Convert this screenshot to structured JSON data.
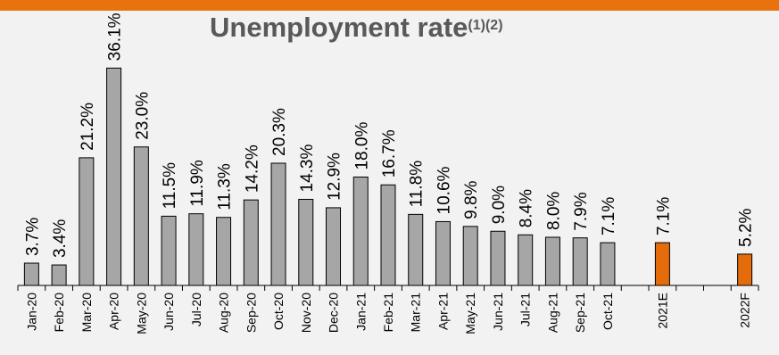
{
  "colors": {
    "accent_stripe": "#e8730c",
    "background": "#f2f2f2",
    "bar_actual": "#a6a6a6",
    "bar_forecast": "#e46c0a",
    "bar_outline": "#000000",
    "title": "#595959"
  },
  "chart_data": {
    "type": "bar",
    "title": "Unemployment rate",
    "title_superscript": "(1)(2)",
    "xlabel": "",
    "ylabel": "",
    "ylim": [
      0,
      40
    ],
    "grid": false,
    "legend": "none",
    "categories": [
      "Jan-20",
      "Feb-20",
      "Mar-20",
      "Apr-20",
      "May-20",
      "Jun-20",
      "Jul-20",
      "Aug-20",
      "Sep-20",
      "Oct-20",
      "Nov-20",
      "Dec-20",
      "Jan-21",
      "Feb-21",
      "Mar-21",
      "Apr-21",
      "May-21",
      "Jun-21",
      "Jul-21",
      "Aug-21",
      "Sep-21",
      "Oct-21",
      "",
      "2021E",
      "",
      "",
      "2022F"
    ],
    "values": [
      3.7,
      3.4,
      21.2,
      36.1,
      23.0,
      11.5,
      11.9,
      11.3,
      14.2,
      20.3,
      14.3,
      12.9,
      18.0,
      16.7,
      11.8,
      10.6,
      9.8,
      9.0,
      8.4,
      8.0,
      7.9,
      7.1,
      null,
      7.1,
      null,
      null,
      5.2
    ],
    "labels": [
      "3.7%",
      "3.4%",
      "21.2%",
      "36.1%",
      "23.0%",
      "11.5%",
      "11.9%",
      "11.3%",
      "14.2%",
      "20.3%",
      "14.3%",
      "12.9%",
      "18.0%",
      "16.7%",
      "11.8%",
      "10.6%",
      "9.8%",
      "9.0%",
      "8.4%",
      "8.0%",
      "7.9%",
      "7.1%",
      "",
      "7.1%",
      "",
      "",
      "5.2%"
    ],
    "kind": [
      "actual",
      "actual",
      "actual",
      "actual",
      "actual",
      "actual",
      "actual",
      "actual",
      "actual",
      "actual",
      "actual",
      "actual",
      "actual",
      "actual",
      "actual",
      "actual",
      "actual",
      "actual",
      "actual",
      "actual",
      "actual",
      "actual",
      "gap",
      "forecast",
      "gap",
      "gap",
      "forecast"
    ]
  }
}
